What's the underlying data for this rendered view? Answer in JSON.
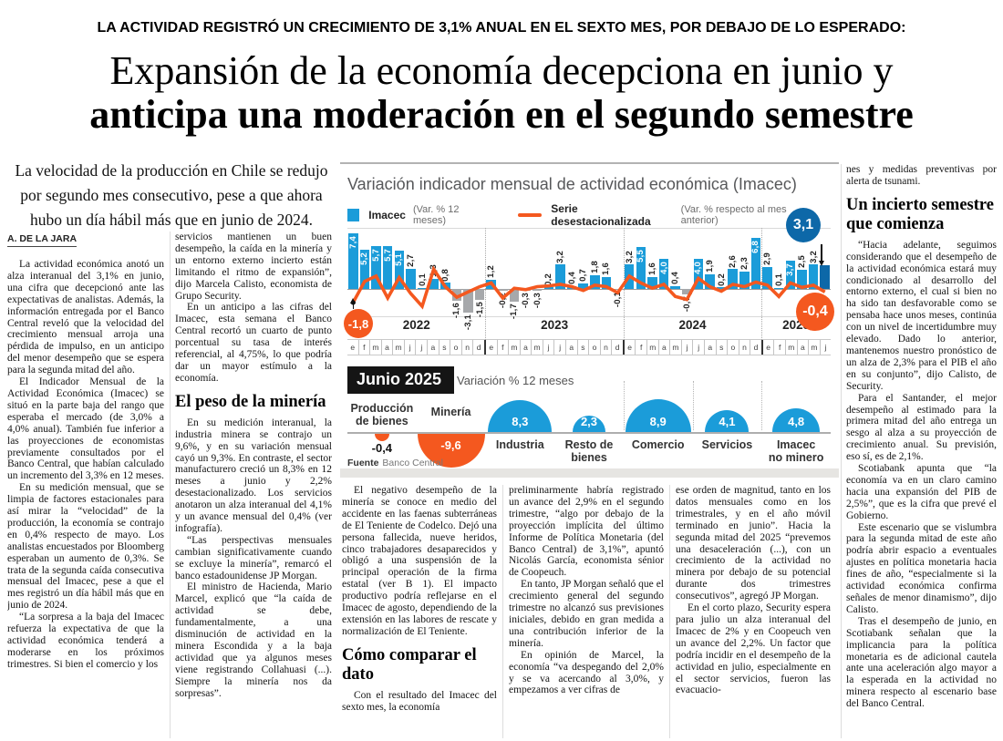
{
  "page": {
    "kicker": "LA ACTIVIDAD REGISTRÓ UN CRECIMIENTO DE 3,1% ANUAL EN EL SEXTO MES, POR DEBAJO DE LO ESPERADO:",
    "headline_line1": "Expansión de la economía decepciona en junio y",
    "headline_line2": "anticipa una moderación en el segundo semestre",
    "lead": "La velocidad de la producción en Chile se redujo por segundo mes consecutivo, pese a que ahora hubo un día hábil más que en junio de 2024.",
    "byline": "A. DE LA JARA"
  },
  "columns": {
    "col1": [
      {
        "type": "p",
        "text": "La actividad económica anotó un alza interanual del 3,1% en junio, una cifra que decepcionó ante las expectativas de analistas. Además, la información entregada por el Banco Central reveló que la velocidad del crecimiento mensual arroja una pérdida de impulso, en un anticipo del menor desempeño que se espera para la segunda mitad del año."
      },
      {
        "type": "p",
        "text": "El Indicador Mensual de la Actividad Económica (Imacec) se situó en la parte baja del rango que esperaba el mercado (de 3,0% a 4,0% anual). También fue inferior a las proyecciones de economistas previamente consultados por el Banco Central, que habían calculado un incremento del 3,3% en 12 meses."
      },
      {
        "type": "p",
        "text": "En su medición mensual, que se limpia de factores estacionales para así mirar la “velocidad” de la producción, la economía se contrajo en 0,4% respecto de mayo. Los analistas encuestados por Bloomberg esperaban un aumento de 0,3%. Se trata de la segunda caída consecutiva mensual del Imacec, pese a que el mes registró un día hábil más que en junio de 2024."
      },
      {
        "type": "p",
        "text": "“La sorpresa a la baja del Imacec refuerza la expectativa de que la actividad económica tenderá a moderarse en los próximos trimestres. Si bien el comercio y los"
      }
    ],
    "col2": [
      {
        "type": "p",
        "indent": false,
        "text": "servicios mantienen un buen desempeño, la caída en la minería y un entorno externo incierto están limitando el ritmo de expansión”, dijo Marcela Calisto, economista de Grupo Security."
      },
      {
        "type": "p",
        "text": "En un anticipo a las cifras del Imacec, esta semana el Banco Central recortó un cuarto de punto porcentual su tasa de interés referencial, al 4,75%, lo que podría dar un mayor estímulo a la economía."
      },
      {
        "type": "h2",
        "text": "El peso de la minería"
      },
      {
        "type": "p",
        "text": "En su medición interanual, la industria minera se contrajo un 9,6%, y en su variación mensual cayó un 9,3%. En contraste, el sector manufacturero creció un 8,3% en 12 meses a junio y 2,2% desestacionalizado. Los servicios anotaron un alza interanual del 4,1% y un avance mensual del 0,4% (ver infografía)."
      },
      {
        "type": "p",
        "text": "“Las perspectivas mensuales cambian significativamente cuando se excluye la minería”, remarcó el banco estadounidense JP Morgan."
      },
      {
        "type": "p",
        "text": "El ministro de Hacienda, Mario Marcel, explicó que “la caída de actividad se debe, fundamentalmente, a una disminución de actividad en la minera Escondida y a la baja actividad que ya algunos meses viene registrando Collahuasi (...). Siempre la minería nos da sorpresas”."
      }
    ],
    "col3": [
      {
        "type": "p",
        "text": "El negativo desempeño de la minería se conoce en medio del accidente en las faenas subterráneas de El Teniente de Codelco. Dejó una persona fallecida, nueve heridos, cinco trabajadores desaparecidos y obligó a una suspensión de la principal operación de la firma estatal (ver B 1). El impacto productivo podría reflejarse en el Imacec de agosto, dependiendo de la extensión en las labores de rescate y normalización de El Teniente."
      },
      {
        "type": "h2",
        "text": "Cómo comparar el dato"
      },
      {
        "type": "p",
        "text": "Con el resultado del Imacec del sexto mes, la economía"
      }
    ],
    "col4": [
      {
        "type": "p",
        "indent": false,
        "text": "preliminarmente habría registrado un avance del 2,9% en el segundo trimestre, “algo por debajo de la proyección implícita del último Informe de Política Monetaria (del Banco Central) de 3,1%”, apuntó Nicolás García, economista sénior de Coopeuch."
      },
      {
        "type": "p",
        "text": "En tanto, JP Morgan señaló que el crecimiento general del segundo trimestre no alcanzó sus previsiones iniciales, debido en gran medida a una contribución inferior de la minería."
      },
      {
        "type": "p",
        "text": "En opinión de Marcel, la economía “va despegando del 2,0% y se va acercando al 3,0%, y empezamos a ver cifras de"
      }
    ],
    "col5": [
      {
        "type": "p",
        "indent": false,
        "text": "ese orden de magnitud, tanto en los datos mensuales como en los trimestrales, y en el año móvil terminado en junio”. Hacia la segunda mitad del 2025 “prevemos una desaceleración (...), con un crecimiento de la actividad no minera por debajo de su potencial durante dos trimestres consecutivos”, agregó JP Morgan."
      },
      {
        "type": "p",
        "text": "En el corto plazo, Security espera para julio un alza interanual del Imacec de 2% y en Coopeuch ven un avance del 2,2%. Un factor que podría incidir en el desempeño de la actividad en julio, especialmente en el sector servicios, fueron las evacuacio-"
      }
    ],
    "col6": [
      {
        "type": "p",
        "indent": false,
        "text": "nes y medidas preventivas por alerta de tsunami."
      },
      {
        "type": "h2",
        "text": "Un incierto semestre que comienza"
      },
      {
        "type": "p",
        "text": "“Hacia adelante, seguimos considerando que el desempeño de la actividad económica estará muy condicionado al desarrollo del entorno externo, el cual si bien no ha sido tan desfavorable como se pensaba hace unos meses, continúa con un nivel de incertidumbre muy elevado. Dado lo anterior, mantenemos nuestro pronóstico de un alza de 2,3% para el PIB el año en su conjunto”, dijo Calisto, de Security."
      },
      {
        "type": "p",
        "text": "Para el Santander, el mejor desempeño al estimado para la primera mitad del año entrega un sesgo al alza a su proyección de crecimiento anual. Su previsión, eso sí, es de 2,1%."
      },
      {
        "type": "p",
        "text": "Scotiabank apunta que “la economía va en un claro camino hacia una expansión del PIB de 2,5%”, que es la cifra que prevé el Gobierno."
      },
      {
        "type": "p",
        "text": "Este escenario que se vislumbra para la segunda mitad de este año podría abrir espacio a eventuales ajustes en política monetaria hacia fines de año, “especialmente si la actividad económica confirma señales de menor dinamismo”, dijo Calisto."
      },
      {
        "type": "p",
        "text": "Tras el desempeño de junio, en Scotiabank señalan que la implicancia para la política monetaria es de adicional cautela ante una aceleración algo mayor a la esperada en la actividad no minera respecto al escenario base del Banco Central."
      }
    ]
  },
  "infographic": {
    "title": "Variación indicador mensual de actividad económica (Imacec)",
    "legend": [
      {
        "swatch": "square",
        "color": "#1b9cd9",
        "label": "Imacec",
        "sub": "(Var. % 12 meses)"
      },
      {
        "swatch": "line",
        "color": "#f4581f",
        "label": "Serie desestacionalizada",
        "sub": "(Var. % respecto al mes anterior)"
      }
    ],
    "junio_box": "Junio 2025",
    "junio_sub": "Variación % 12 meses",
    "source_label": "Fuente",
    "source_value": "Banco Central",
    "colors": {
      "bar_positive": "#1b9cd9",
      "bar_negative": "#a6a8ab",
      "bar_highlight": "#0d68a8",
      "line": "#f4581f",
      "bubble_negative": "#f4581f",
      "bubble_positive": "#1b9cd9",
      "junio_box_bg": "#151515"
    }
  },
  "chart_data": [
    {
      "type": "bar",
      "title": "Variación indicador mensual de actividad económica (Imacec)",
      "x_months": [
        "e",
        "f",
        "m",
        "a",
        "m",
        "j",
        "j",
        "a",
        "s",
        "o",
        "n",
        "d",
        "e",
        "f",
        "m",
        "a",
        "m",
        "j",
        "j",
        "a",
        "s",
        "o",
        "n",
        "d",
        "e",
        "f",
        "m",
        "a",
        "m",
        "j",
        "j",
        "a",
        "s",
        "o",
        "n",
        "d",
        "e",
        "f",
        "m",
        "a",
        "m",
        "j"
      ],
      "years": [
        {
          "label": "2022",
          "months": 12
        },
        {
          "label": "2023",
          "months": 12
        },
        {
          "label": "2024",
          "months": 12
        },
        {
          "label": "2025",
          "months": 6
        }
      ],
      "series": [
        {
          "name": "Imacec (Var. % 12 meses)",
          "type": "bar",
          "values": [
            7.4,
            5.2,
            5.7,
            5.7,
            5.1,
            2.7,
            0.1,
            1.3,
            0.8,
            -1.6,
            -3.1,
            -1.5,
            1.2,
            -0.2,
            -1.7,
            -0.3,
            -0.3,
            0.2,
            3.2,
            0.4,
            0.7,
            1.8,
            1.6,
            -0.1,
            3.2,
            5.5,
            1.6,
            4.0,
            0.4,
            -0.7,
            4.0,
            1.9,
            0.2,
            2.6,
            2.3,
            6.8,
            2.9,
            0.1,
            3.7,
            2.5,
            3.2,
            3.1
          ]
        },
        {
          "name": "Serie desestacionalizada (Var. % respecto al mes anterior)",
          "type": "line",
          "values_estimated": [
            -1.8,
            1.0,
            1.7,
            -1.2,
            1.5,
            -0.6,
            -2.3,
            2.6,
            0.3,
            -1.1,
            -0.4,
            0.3,
            0.8,
            -1.2,
            0.1,
            -0.1,
            0.3,
            0.4,
            0.6,
            0.3,
            -0.2,
            0.5,
            0.3,
            -0.5,
            1.7,
            0.8,
            0.1,
            0.6,
            -1.0,
            -1.4,
            1.4,
            0.3,
            -0.3,
            0.6,
            0.3,
            0.9,
            0.5,
            -1.0,
            0.8,
            0.2,
            0.5,
            -0.4
          ]
        }
      ],
      "annotations": [
        {
          "text": "-1,8",
          "series": "Serie desestacionalizada",
          "point": "enero 2022",
          "style": "orange-circle"
        },
        {
          "text": "3,1",
          "series": "Imacec",
          "point": "junio 2025",
          "style": "blue-circle"
        },
        {
          "text": "-0,4",
          "series": "Serie desestacionalizada",
          "point": "junio 2025",
          "style": "orange-circle"
        }
      ],
      "ylim": [
        -3.5,
        8
      ],
      "grid": true,
      "legend_position": "top",
      "source": "Banco Central"
    },
    {
      "type": "bubble",
      "title": "Junio 2025 — Variación % 12 meses",
      "categories": [
        "Producción\nde bienes",
        "Minería",
        "Industria",
        "Resto de\nbienes",
        "Comercio",
        "Servicios",
        "Imacec\nno minero"
      ],
      "values": [
        -0.4,
        -9.6,
        8.3,
        2.3,
        8.9,
        4.1,
        4.8
      ],
      "source": "Banco Central"
    }
  ]
}
